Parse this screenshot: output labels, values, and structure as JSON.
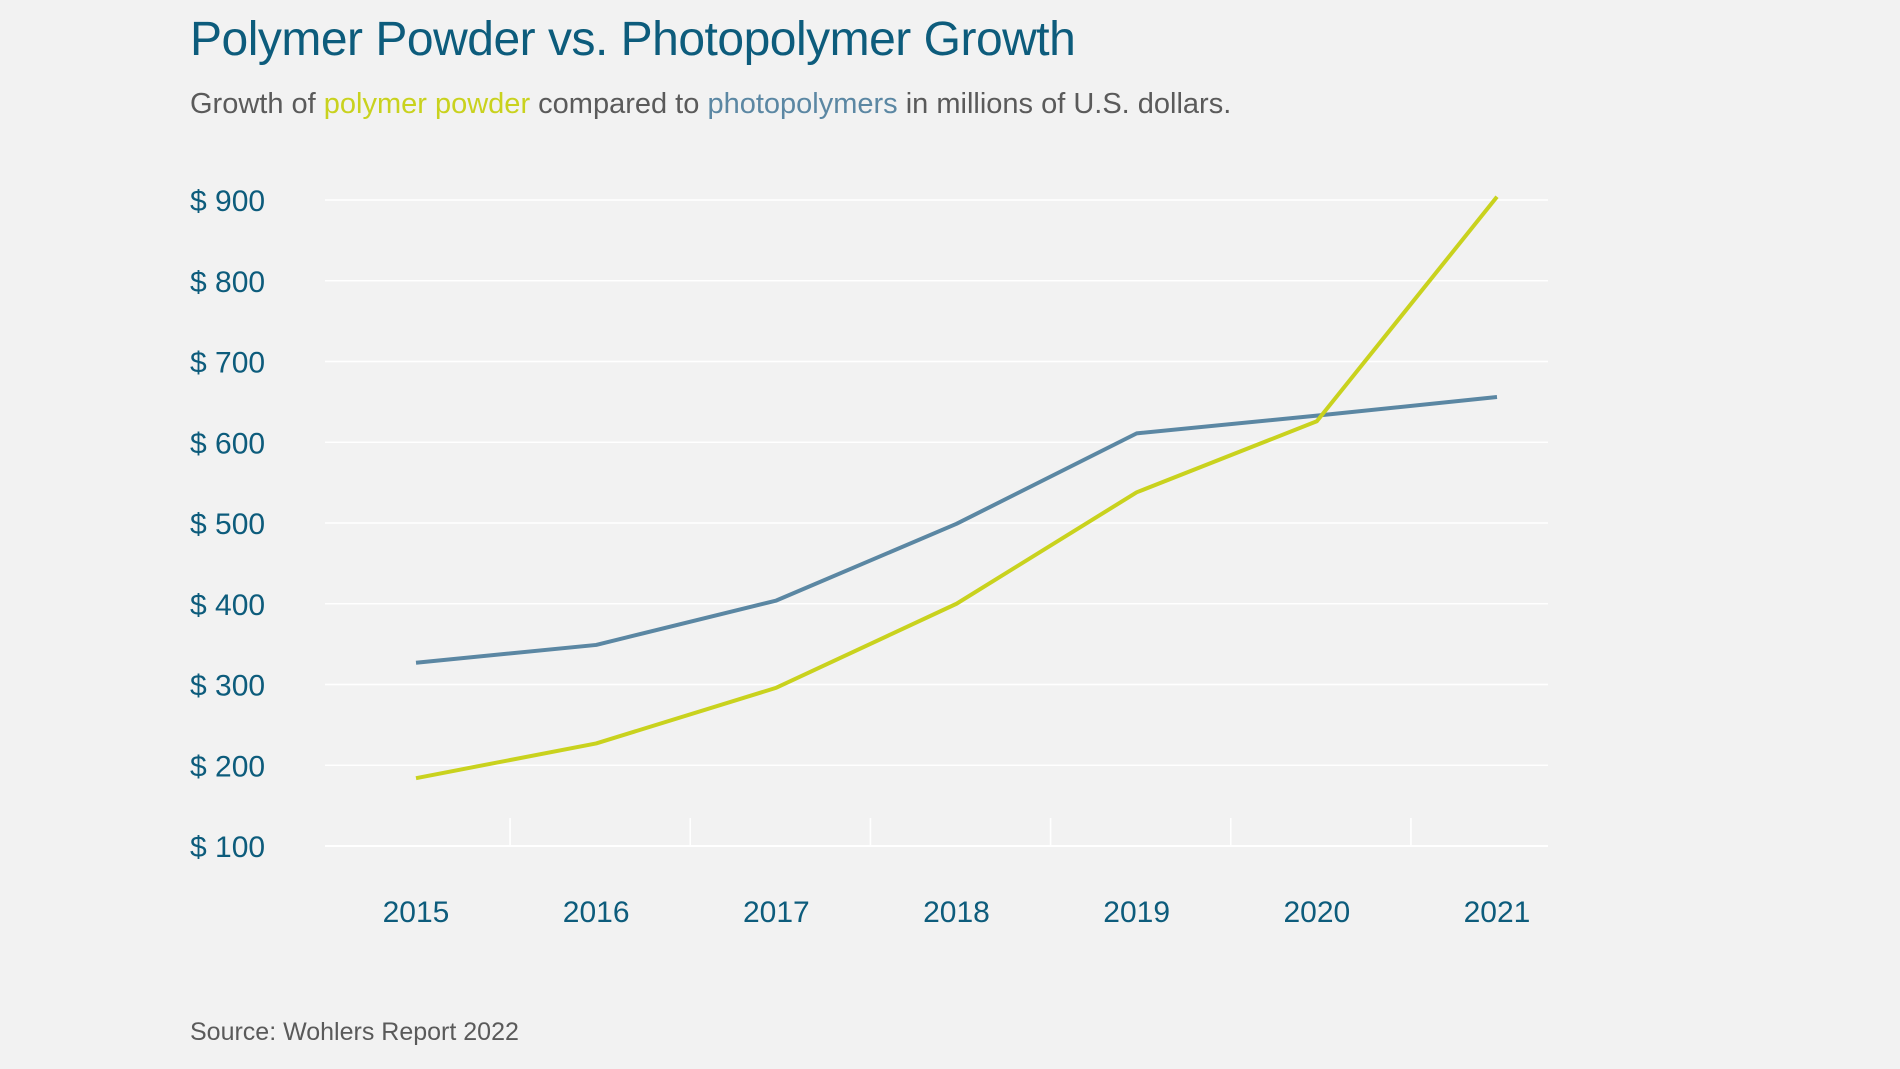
{
  "title": "Polymer Powder vs. Photopolymer Growth",
  "subtitle": {
    "prefix": "Growth of ",
    "series_a": "polymer powder",
    "middle": " compared to ",
    "series_b": "photopolymers",
    "suffix": " in millions of U.S. dollars."
  },
  "source": "Source: Wohlers Report 2022",
  "colors": {
    "background": "#f2f2f2",
    "title": "#0d5c7c",
    "axis_text": "#0d5c7c",
    "polymer_powder": "#c9d21e",
    "photopolymers": "#5b87a3",
    "gridline": "#ffffff"
  },
  "chart_data": {
    "type": "line",
    "title": "Polymer Powder vs. Photopolymer Growth",
    "xlabel": "",
    "ylabel": "",
    "categories": [
      "2015",
      "2016",
      "2017",
      "2018",
      "2019",
      "2020",
      "2021"
    ],
    "series": [
      {
        "key": "photopolymers",
        "values": [
          327,
          349,
          404,
          499,
          611,
          633,
          656
        ]
      },
      {
        "key": "polymer_powder",
        "values": [
          184,
          227,
          296,
          400,
          538,
          626,
          904
        ]
      }
    ],
    "ylim": [
      100,
      900
    ],
    "yticks": [
      900,
      800,
      700,
      600,
      500,
      400,
      300,
      200,
      100
    ],
    "ytick_labels": [
      "$ 900",
      "$ 800",
      "$ 700",
      "$ 600",
      "$ 500",
      "$ 400",
      "$ 300",
      "$ 200",
      "$ 100"
    ],
    "grid": true,
    "legend": "none"
  }
}
